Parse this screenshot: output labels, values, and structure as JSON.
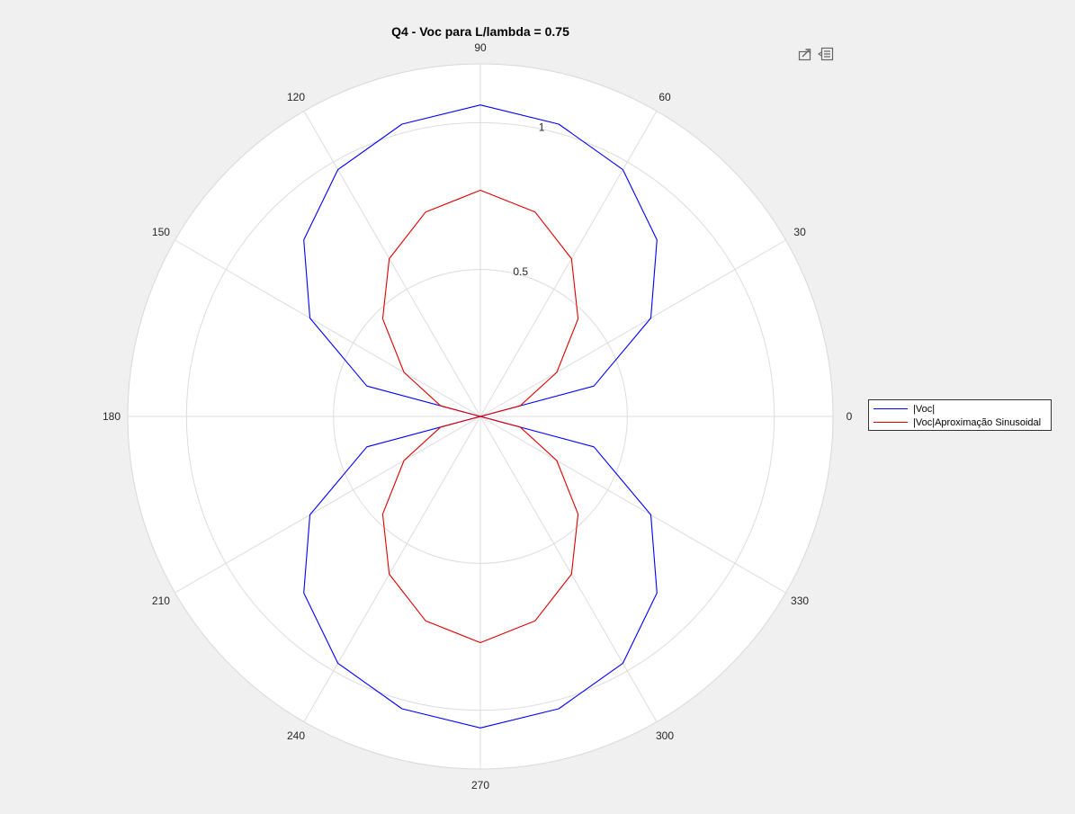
{
  "figure": {
    "title": "Q4 - Voc para L/lambda = 0.75",
    "background": "#f0f0f0",
    "axes_background": "#ffffff",
    "toolbar": {
      "icons": [
        "export-icon",
        "legend-toggle-icon"
      ]
    }
  },
  "chart_data": {
    "type": "polar-line",
    "title": "Q4 - Voc para L/lambda = 0.75",
    "theta_unit": "degrees",
    "theta_ticks": [
      0,
      30,
      60,
      90,
      120,
      150,
      180,
      210,
      240,
      270,
      300,
      330
    ],
    "theta_tick_labels": [
      "0",
      "30",
      "60",
      "90",
      "120",
      "150",
      "180",
      "210",
      "240",
      "270",
      "300",
      "330"
    ],
    "r_lim": [
      0,
      1.2
    ],
    "r_ticks": [
      0.5,
      1
    ],
    "r_tick_labels": [
      "0.5",
      "1"
    ],
    "r_ticks_drawn": [
      0.5,
      1,
      1.2
    ],
    "r_label_angle": 80,
    "grid": true,
    "legend": {
      "placement": "right",
      "entries": [
        "|Voc|",
        "|Voc|Aproximação Sinusoidal"
      ]
    },
    "series": [
      {
        "name": "|Voc|",
        "color": "#0000ff",
        "theta": [
          0,
          15,
          30,
          45,
          60,
          75,
          90,
          105,
          120,
          135,
          150,
          165,
          180,
          195,
          210,
          225,
          240,
          255,
          270,
          285,
          300,
          315,
          330,
          345,
          360
        ],
        "r": [
          0.0,
          0.4,
          0.67,
          0.85,
          0.97,
          1.03,
          1.06,
          1.03,
          0.97,
          0.85,
          0.67,
          0.4,
          0.0,
          0.4,
          0.67,
          0.85,
          0.97,
          1.03,
          1.06,
          1.03,
          0.97,
          0.85,
          0.67,
          0.4,
          0.0
        ]
      },
      {
        "name": "|Voc|Aproximação Sinusoidal",
        "color": "#dd0000",
        "theta": [
          0,
          15,
          30,
          45,
          60,
          75,
          90,
          105,
          120,
          135,
          150,
          165,
          180,
          195,
          210,
          225,
          240,
          255,
          270,
          285,
          300,
          315,
          330,
          345,
          360
        ],
        "r": [
          0.0,
          0.14,
          0.3,
          0.47,
          0.62,
          0.72,
          0.77,
          0.72,
          0.62,
          0.47,
          0.3,
          0.14,
          0.0,
          0.14,
          0.3,
          0.47,
          0.62,
          0.72,
          0.77,
          0.72,
          0.62,
          0.47,
          0.3,
          0.14,
          0.0
        ]
      }
    ]
  }
}
